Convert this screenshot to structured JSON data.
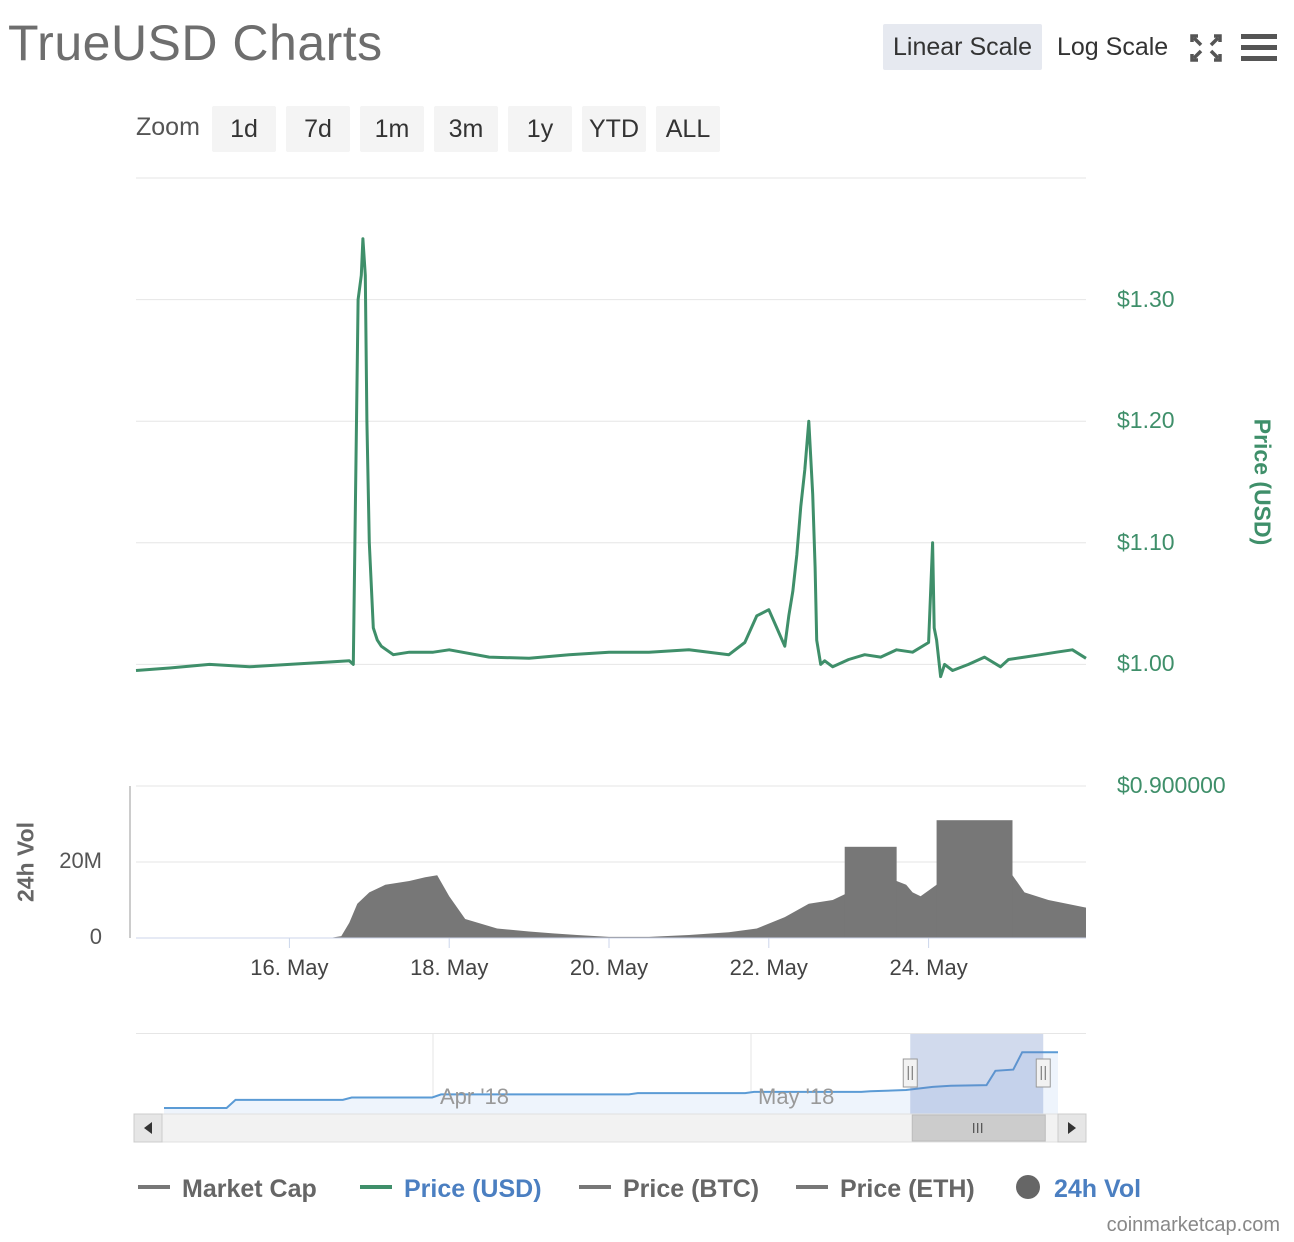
{
  "header": {
    "title": "TrueUSD Charts",
    "scale_buttons": [
      "Linear Scale",
      "Log Scale"
    ],
    "active_scale": "Linear Scale",
    "icons": [
      "fullscreen-icon",
      "menu-icon"
    ]
  },
  "zoom": {
    "label": "Zoom",
    "options": [
      "1d",
      "7d",
      "1m",
      "3m",
      "1y",
      "YTD",
      "ALL"
    ]
  },
  "chart_data": {
    "type": "line",
    "price_axis": {
      "title": "Price (USD)",
      "ticks": [
        "$1.30",
        "$1.20",
        "$1.10",
        "$1.00",
        "$0.900000"
      ],
      "tick_values": [
        1.3,
        1.2,
        1.1,
        1.0,
        0.9
      ],
      "ylim": [
        0.9,
        1.4
      ],
      "color": "#3f8f6a"
    },
    "volume_axis": {
      "title": "24h Vol",
      "ticks": [
        "20M",
        "0"
      ],
      "tick_values": [
        20000000,
        0
      ],
      "ylim": [
        0,
        40000000
      ]
    },
    "x_axis": {
      "ticks": [
        "16. May",
        "18. May",
        "20. May",
        "22. May",
        "24. May"
      ],
      "tick_days": [
        16,
        18,
        20,
        22,
        24
      ],
      "range_days": [
        14.08,
        25.97
      ]
    },
    "series": [
      {
        "name": "Price (USD)",
        "color": "#3f8f6a",
        "x_day": [
          14.08,
          14.5,
          15.0,
          15.5,
          16.0,
          16.5,
          16.75,
          16.8,
          16.83,
          16.86,
          16.9,
          16.92,
          16.95,
          16.97,
          17.0,
          17.05,
          17.1,
          17.15,
          17.3,
          17.5,
          17.8,
          18.0,
          18.5,
          19.0,
          19.5,
          20.0,
          20.5,
          21.0,
          21.5,
          21.7,
          21.85,
          22.0,
          22.1,
          22.2,
          22.25,
          22.3,
          22.35,
          22.4,
          22.45,
          22.5,
          22.55,
          22.58,
          22.6,
          22.65,
          22.7,
          22.8,
          23.0,
          23.2,
          23.4,
          23.6,
          23.8,
          24.0,
          24.05,
          24.07,
          24.1,
          24.15,
          24.2,
          24.3,
          24.5,
          24.7,
          24.9,
          25.0,
          25.2,
          25.4,
          25.6,
          25.8,
          25.97
        ],
        "values": [
          0.995,
          0.997,
          1.0,
          0.998,
          1.0,
          1.002,
          1.003,
          1.0,
          1.15,
          1.3,
          1.32,
          1.35,
          1.32,
          1.2,
          1.1,
          1.03,
          1.02,
          1.015,
          1.008,
          1.01,
          1.01,
          1.012,
          1.006,
          1.005,
          1.008,
          1.01,
          1.01,
          1.012,
          1.008,
          1.018,
          1.04,
          1.045,
          1.03,
          1.015,
          1.04,
          1.06,
          1.09,
          1.13,
          1.16,
          1.2,
          1.14,
          1.08,
          1.02,
          1.0,
          1.003,
          0.998,
          1.004,
          1.008,
          1.006,
          1.012,
          1.01,
          1.018,
          1.1,
          1.03,
          1.02,
          0.99,
          1.0,
          0.995,
          1.0,
          1.006,
          0.998,
          1.004,
          1.006,
          1.008,
          1.01,
          1.012,
          1.005
        ]
      },
      {
        "name": "24h Vol",
        "color": "#777777",
        "x_day": [
          14.08,
          16.5,
          16.65,
          16.75,
          16.85,
          17.0,
          17.2,
          17.5,
          17.7,
          17.85,
          18.0,
          18.2,
          18.6,
          19.0,
          19.3,
          19.6,
          20.0,
          20.5,
          21.0,
          21.5,
          21.85,
          22.2,
          22.5,
          22.8,
          23.0,
          23.2,
          23.6,
          23.72,
          23.8,
          23.9,
          24.1,
          24.2,
          24.5,
          24.9,
          25.0,
          25.2,
          25.5,
          25.97
        ],
        "values": [
          0,
          0,
          500000,
          4000000,
          9000000,
          12000000,
          14000000,
          15000000,
          16000000,
          16500000,
          11000000,
          5000000,
          2500000,
          1700000,
          1200000,
          800000,
          300000,
          300000,
          800000,
          1500000,
          2500000,
          5500000,
          9000000,
          10000000,
          12000000,
          14000000,
          15000000,
          14000000,
          12000000,
          11000000,
          14000000,
          20000000,
          22000000,
          21000000,
          18000000,
          12000000,
          10000000,
          8000000
        ],
        "highlight_blocks": [
          {
            "from_day": 22.95,
            "to_day": 23.6,
            "value": 24000000
          },
          {
            "from_day": 24.1,
            "to_day": 25.05,
            "value": 31000000
          }
        ]
      }
    ],
    "navigator": {
      "labels": [
        "Apr '18",
        "May '18"
      ],
      "series_values": [
        0.0,
        0.0,
        0.06,
        0.07,
        0.08,
        0.1,
        0.12,
        0.14,
        0.16,
        0.18,
        0.21,
        0.28,
        0.36,
        0.5,
        0.9
      ],
      "selection_fraction": [
        0.815,
        0.955
      ]
    },
    "legend": [
      {
        "label": "Market Cap",
        "color": "#777777",
        "marker": "line",
        "active": false
      },
      {
        "label": "Price (USD)",
        "color": "#3f8f6a",
        "marker": "line",
        "active": true
      },
      {
        "label": "Price (BTC)",
        "color": "#777777",
        "marker": "line",
        "active": false
      },
      {
        "label": "Price (ETH)",
        "color": "#777777",
        "marker": "line",
        "active": false
      },
      {
        "label": "24h Vol",
        "color": "#777777",
        "marker": "dot",
        "active": true
      }
    ]
  },
  "footer": {
    "credits": "coinmarketcap.com"
  }
}
